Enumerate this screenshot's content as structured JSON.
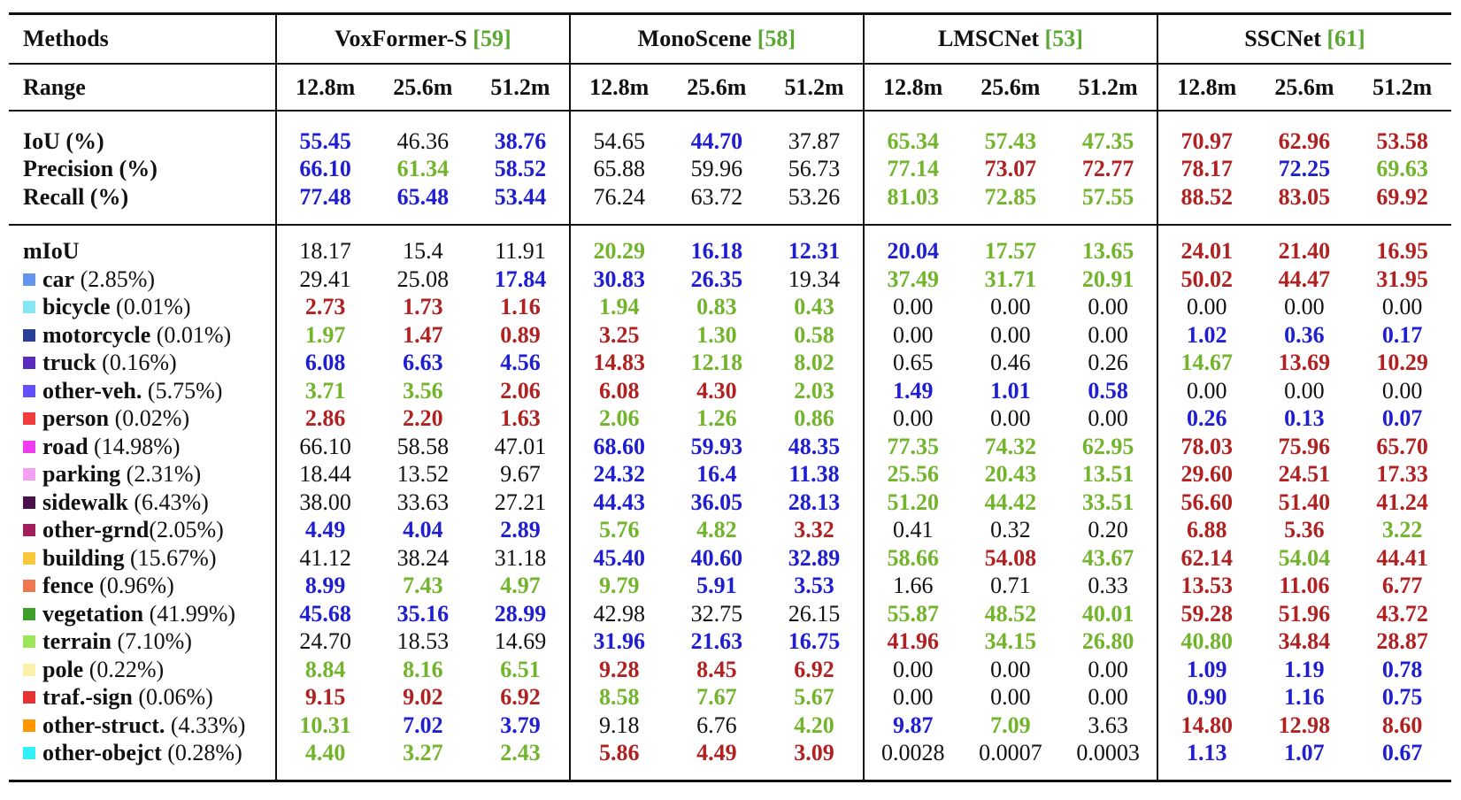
{
  "header": {
    "methods_label": "Methods",
    "range_label": "Range",
    "methods": [
      {
        "name": "VoxFormer-S",
        "cite": "[59]"
      },
      {
        "name": "MonoScene",
        "cite": "[58]"
      },
      {
        "name": "LMSCNet",
        "cite": "[53]"
      },
      {
        "name": "SSCNet",
        "cite": "[61]"
      }
    ],
    "ranges": [
      "12.8m",
      "25.6m",
      "51.2m"
    ]
  },
  "colors": {
    "blue": "#1f1fd0",
    "green": "#72b42c",
    "red": "#b02222",
    "plain": "#111111",
    "cite": "#5aa832"
  },
  "geometry_rows": [
    {
      "label": "IoU (%)",
      "cells": [
        [
          "55.45",
          "blue"
        ],
        [
          "46.36",
          "plain"
        ],
        [
          "38.76",
          "blue"
        ],
        [
          "54.65",
          "plain"
        ],
        [
          "44.70",
          "blue"
        ],
        [
          "37.87",
          "plain"
        ],
        [
          "65.34",
          "green"
        ],
        [
          "57.43",
          "green"
        ],
        [
          "47.35",
          "green"
        ],
        [
          "70.97",
          "red"
        ],
        [
          "62.96",
          "red"
        ],
        [
          "53.58",
          "red"
        ]
      ]
    },
    {
      "label": "Precision (%)",
      "cells": [
        [
          "66.10",
          "blue"
        ],
        [
          "61.34",
          "green"
        ],
        [
          "58.52",
          "blue"
        ],
        [
          "65.88",
          "plain"
        ],
        [
          "59.96",
          "plain"
        ],
        [
          "56.73",
          "plain"
        ],
        [
          "77.14",
          "green"
        ],
        [
          "73.07",
          "red"
        ],
        [
          "72.77",
          "red"
        ],
        [
          "78.17",
          "red"
        ],
        [
          "72.25",
          "blue"
        ],
        [
          "69.63",
          "green"
        ]
      ]
    },
    {
      "label": "Recall (%)",
      "cells": [
        [
          "77.48",
          "blue"
        ],
        [
          "65.48",
          "blue"
        ],
        [
          "53.44",
          "blue"
        ],
        [
          "76.24",
          "plain"
        ],
        [
          "63.72",
          "plain"
        ],
        [
          "53.26",
          "plain"
        ],
        [
          "81.03",
          "green"
        ],
        [
          "72.85",
          "green"
        ],
        [
          "57.55",
          "green"
        ],
        [
          "88.52",
          "red"
        ],
        [
          "83.05",
          "red"
        ],
        [
          "69.92",
          "red"
        ]
      ]
    }
  ],
  "miou_row": {
    "label": "mIoU",
    "cells": [
      [
        "18.17",
        "plain"
      ],
      [
        "15.4",
        "plain"
      ],
      [
        "11.91",
        "plain"
      ],
      [
        "20.29",
        "green"
      ],
      [
        "16.18",
        "blue"
      ],
      [
        "12.31",
        "blue"
      ],
      [
        "20.04",
        "blue"
      ],
      [
        "17.57",
        "green"
      ],
      [
        "13.65",
        "green"
      ],
      [
        "24.01",
        "red"
      ],
      [
        "21.40",
        "red"
      ],
      [
        "16.95",
        "red"
      ]
    ]
  },
  "class_rows": [
    {
      "name": "car",
      "freq": " (2.85%)",
      "swatch": "#6495ed",
      "cells": [
        [
          "29.41",
          "plain"
        ],
        [
          "25.08",
          "plain"
        ],
        [
          "17.84",
          "blue"
        ],
        [
          "30.83",
          "blue"
        ],
        [
          "26.35",
          "blue"
        ],
        [
          "19.34",
          "plain"
        ],
        [
          "37.49",
          "green"
        ],
        [
          "31.71",
          "green"
        ],
        [
          "20.91",
          "green"
        ],
        [
          "50.02",
          "red"
        ],
        [
          "44.47",
          "red"
        ],
        [
          "31.95",
          "red"
        ]
      ]
    },
    {
      "name": "bicycle",
      "freq": " (0.01%)",
      "swatch": "#87e6f5",
      "cells": [
        [
          "2.73",
          "red"
        ],
        [
          "1.73",
          "red"
        ],
        [
          "1.16",
          "red"
        ],
        [
          "1.94",
          "green"
        ],
        [
          "0.83",
          "green"
        ],
        [
          "0.43",
          "green"
        ],
        [
          "0.00",
          "plain"
        ],
        [
          "0.00",
          "plain"
        ],
        [
          "0.00",
          "plain"
        ],
        [
          "0.00",
          "plain"
        ],
        [
          "0.00",
          "plain"
        ],
        [
          "0.00",
          "plain"
        ]
      ]
    },
    {
      "name": "motorcycle",
      "freq": " (0.01%)",
      "swatch": "#2a3f96",
      "cells": [
        [
          "1.97",
          "green"
        ],
        [
          "1.47",
          "red"
        ],
        [
          "0.89",
          "red"
        ],
        [
          "3.25",
          "red"
        ],
        [
          "1.30",
          "green"
        ],
        [
          "0.58",
          "green"
        ],
        [
          "0.00",
          "plain"
        ],
        [
          "0.00",
          "plain"
        ],
        [
          "0.00",
          "plain"
        ],
        [
          "1.02",
          "blue"
        ],
        [
          "0.36",
          "blue"
        ],
        [
          "0.17",
          "blue"
        ]
      ]
    },
    {
      "name": "truck",
      "freq": " (0.16%)",
      "swatch": "#5a2dbe",
      "cells": [
        [
          "6.08",
          "blue"
        ],
        [
          "6.63",
          "blue"
        ],
        [
          "4.56",
          "blue"
        ],
        [
          "14.83",
          "red"
        ],
        [
          "12.18",
          "green"
        ],
        [
          "8.02",
          "green"
        ],
        [
          "0.65",
          "plain"
        ],
        [
          "0.46",
          "plain"
        ],
        [
          "0.26",
          "plain"
        ],
        [
          "14.67",
          "green"
        ],
        [
          "13.69",
          "red"
        ],
        [
          "10.29",
          "red"
        ]
      ]
    },
    {
      "name": "other-veh.",
      "freq": " (5.75%)",
      "swatch": "#6450fa",
      "cells": [
        [
          "3.71",
          "green"
        ],
        [
          "3.56",
          "green"
        ],
        [
          "2.06",
          "red"
        ],
        [
          "6.08",
          "red"
        ],
        [
          "4.30",
          "red"
        ],
        [
          "2.03",
          "green"
        ],
        [
          "1.49",
          "blue"
        ],
        [
          "1.01",
          "blue"
        ],
        [
          "0.58",
          "blue"
        ],
        [
          "0.00",
          "plain"
        ],
        [
          "0.00",
          "plain"
        ],
        [
          "0.00",
          "plain"
        ]
      ]
    },
    {
      "name": "person",
      "freq": " (0.02%)",
      "swatch": "#f03c3c",
      "cells": [
        [
          "2.86",
          "red"
        ],
        [
          "2.20",
          "red"
        ],
        [
          "1.63",
          "red"
        ],
        [
          "2.06",
          "green"
        ],
        [
          "1.26",
          "green"
        ],
        [
          "0.86",
          "green"
        ],
        [
          "0.00",
          "plain"
        ],
        [
          "0.00",
          "plain"
        ],
        [
          "0.00",
          "plain"
        ],
        [
          "0.26",
          "blue"
        ],
        [
          "0.13",
          "blue"
        ],
        [
          "0.07",
          "blue"
        ]
      ]
    },
    {
      "name": "road",
      "freq": " (14.98%)",
      "swatch": "#f03cf0",
      "cells": [
        [
          "66.10",
          "plain"
        ],
        [
          "58.58",
          "plain"
        ],
        [
          "47.01",
          "plain"
        ],
        [
          "68.60",
          "blue"
        ],
        [
          "59.93",
          "blue"
        ],
        [
          "48.35",
          "blue"
        ],
        [
          "77.35",
          "green"
        ],
        [
          "74.32",
          "green"
        ],
        [
          "62.95",
          "green"
        ],
        [
          "78.03",
          "red"
        ],
        [
          "75.96",
          "red"
        ],
        [
          "65.70",
          "red"
        ]
      ]
    },
    {
      "name": "parking",
      "freq": " (2.31%)",
      "swatch": "#f5a0f0",
      "cells": [
        [
          "18.44",
          "plain"
        ],
        [
          "13.52",
          "plain"
        ],
        [
          "9.67",
          "plain"
        ],
        [
          "24.32",
          "blue"
        ],
        [
          "16.4",
          "blue"
        ],
        [
          "11.38",
          "blue"
        ],
        [
          "25.56",
          "green"
        ],
        [
          "20.43",
          "green"
        ],
        [
          "13.51",
          "green"
        ],
        [
          "29.60",
          "red"
        ],
        [
          "24.51",
          "red"
        ],
        [
          "17.33",
          "red"
        ]
      ]
    },
    {
      "name": "sidewalk",
      "freq": " (6.43%)",
      "swatch": "#4b0f4b",
      "cells": [
        [
          "38.00",
          "plain"
        ],
        [
          "33.63",
          "plain"
        ],
        [
          "27.21",
          "plain"
        ],
        [
          "44.43",
          "blue"
        ],
        [
          "36.05",
          "blue"
        ],
        [
          "28.13",
          "blue"
        ],
        [
          "51.20",
          "green"
        ],
        [
          "44.42",
          "green"
        ],
        [
          "33.51",
          "green"
        ],
        [
          "56.60",
          "red"
        ],
        [
          "51.40",
          "red"
        ],
        [
          "41.24",
          "red"
        ]
      ]
    },
    {
      "name": "other-grnd",
      "freq": "(2.05%)",
      "swatch": "#a01e5a",
      "cells": [
        [
          "4.49",
          "blue"
        ],
        [
          "4.04",
          "blue"
        ],
        [
          "2.89",
          "blue"
        ],
        [
          "5.76",
          "green"
        ],
        [
          "4.82",
          "green"
        ],
        [
          "3.32",
          "red"
        ],
        [
          "0.41",
          "plain"
        ],
        [
          "0.32",
          "plain"
        ],
        [
          "0.20",
          "plain"
        ],
        [
          "6.88",
          "red"
        ],
        [
          "5.36",
          "red"
        ],
        [
          "3.22",
          "green"
        ]
      ]
    },
    {
      "name": "building",
      "freq": " (15.67%)",
      "swatch": "#fac83c",
      "cells": [
        [
          "41.12",
          "plain"
        ],
        [
          "38.24",
          "plain"
        ],
        [
          "31.18",
          "plain"
        ],
        [
          "45.40",
          "blue"
        ],
        [
          "40.60",
          "blue"
        ],
        [
          "32.89",
          "blue"
        ],
        [
          "58.66",
          "green"
        ],
        [
          "54.08",
          "red"
        ],
        [
          "43.67",
          "green"
        ],
        [
          "62.14",
          "red"
        ],
        [
          "54.04",
          "green"
        ],
        [
          "44.41",
          "red"
        ]
      ]
    },
    {
      "name": "fence",
      "freq": " (0.96%)",
      "swatch": "#f07850",
      "cells": [
        [
          "8.99",
          "blue"
        ],
        [
          "7.43",
          "green"
        ],
        [
          "4.97",
          "green"
        ],
        [
          "9.79",
          "green"
        ],
        [
          "5.91",
          "blue"
        ],
        [
          "3.53",
          "blue"
        ],
        [
          "1.66",
          "plain"
        ],
        [
          "0.71",
          "plain"
        ],
        [
          "0.33",
          "plain"
        ],
        [
          "13.53",
          "red"
        ],
        [
          "11.06",
          "red"
        ],
        [
          "6.77",
          "red"
        ]
      ]
    },
    {
      "name": "vegetation",
      "freq": " (41.99%)",
      "swatch": "#3ca028",
      "cells": [
        [
          "45.68",
          "blue"
        ],
        [
          "35.16",
          "blue"
        ],
        [
          "28.99",
          "blue"
        ],
        [
          "42.98",
          "plain"
        ],
        [
          "32.75",
          "plain"
        ],
        [
          "26.15",
          "plain"
        ],
        [
          "55.87",
          "green"
        ],
        [
          "48.52",
          "green"
        ],
        [
          "40.01",
          "green"
        ],
        [
          "59.28",
          "red"
        ],
        [
          "51.96",
          "red"
        ],
        [
          "43.72",
          "red"
        ]
      ]
    },
    {
      "name": "terrain",
      "freq": " (7.10%)",
      "swatch": "#9be65a",
      "cells": [
        [
          "24.70",
          "plain"
        ],
        [
          "18.53",
          "plain"
        ],
        [
          "14.69",
          "plain"
        ],
        [
          "31.96",
          "blue"
        ],
        [
          "21.63",
          "blue"
        ],
        [
          "16.75",
          "blue"
        ],
        [
          "41.96",
          "red"
        ],
        [
          "34.15",
          "green"
        ],
        [
          "26.80",
          "green"
        ],
        [
          "40.80",
          "green"
        ],
        [
          "34.84",
          "red"
        ],
        [
          "28.87",
          "red"
        ]
      ]
    },
    {
      "name": "pole",
      "freq": " (0.22%)",
      "swatch": "#faf0aa",
      "cells": [
        [
          "8.84",
          "green"
        ],
        [
          "8.16",
          "green"
        ],
        [
          "6.51",
          "green"
        ],
        [
          "9.28",
          "red"
        ],
        [
          "8.45",
          "red"
        ],
        [
          "6.92",
          "red"
        ],
        [
          "0.00",
          "plain"
        ],
        [
          "0.00",
          "plain"
        ],
        [
          "0.00",
          "plain"
        ],
        [
          "1.09",
          "blue"
        ],
        [
          "1.19",
          "blue"
        ],
        [
          "0.78",
          "blue"
        ]
      ]
    },
    {
      "name": "traf.-sign",
      "freq": " (0.06%)",
      "swatch": "#e63232",
      "cells": [
        [
          "9.15",
          "red"
        ],
        [
          "9.02",
          "red"
        ],
        [
          "6.92",
          "red"
        ],
        [
          "8.58",
          "green"
        ],
        [
          "7.67",
          "green"
        ],
        [
          "5.67",
          "green"
        ],
        [
          "0.00",
          "plain"
        ],
        [
          "0.00",
          "plain"
        ],
        [
          "0.00",
          "plain"
        ],
        [
          "0.90",
          "blue"
        ],
        [
          "1.16",
          "blue"
        ],
        [
          "0.75",
          "blue"
        ]
      ]
    },
    {
      "name": "other-struct.",
      "freq": " (4.33%)",
      "swatch": "#ff9600",
      "cells": [
        [
          "10.31",
          "green"
        ],
        [
          "7.02",
          "blue"
        ],
        [
          "3.79",
          "blue"
        ],
        [
          "9.18",
          "plain"
        ],
        [
          "6.76",
          "plain"
        ],
        [
          "4.20",
          "green"
        ],
        [
          "9.87",
          "blue"
        ],
        [
          "7.09",
          "green"
        ],
        [
          "3.63",
          "plain"
        ],
        [
          "14.80",
          "red"
        ],
        [
          "12.98",
          "red"
        ],
        [
          "8.60",
          "red"
        ]
      ]
    },
    {
      "name": "other-obejct",
      "freq": " (0.28%)",
      "swatch": "#32f0fa",
      "cells": [
        [
          "4.40",
          "green"
        ],
        [
          "3.27",
          "green"
        ],
        [
          "2.43",
          "green"
        ],
        [
          "5.86",
          "red"
        ],
        [
          "4.49",
          "red"
        ],
        [
          "3.09",
          "red"
        ],
        [
          "0.0028",
          "plain"
        ],
        [
          "0.0007",
          "plain"
        ],
        [
          "0.0003",
          "plain"
        ],
        [
          "1.13",
          "blue"
        ],
        [
          "1.07",
          "blue"
        ],
        [
          "0.67",
          "blue"
        ]
      ]
    }
  ]
}
